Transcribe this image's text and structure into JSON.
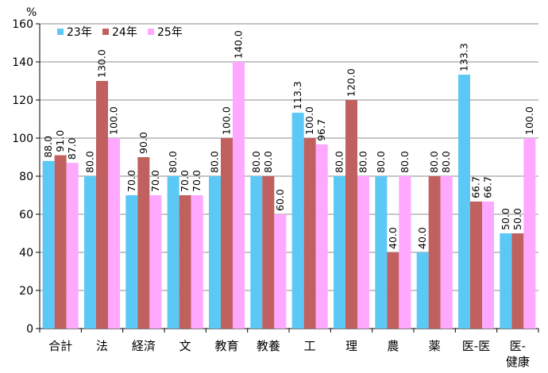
{
  "chart_data": {
    "type": "bar",
    "y_unit": "%",
    "ylim": [
      0,
      160
    ],
    "y_ticks": [
      0,
      20,
      40,
      60,
      80,
      100,
      120,
      140,
      160
    ],
    "grid": true,
    "legend_placement": "top-left",
    "categories": [
      "合計",
      "法",
      "経済",
      "文",
      "教育",
      "教養",
      "工",
      "理",
      "農",
      "薬",
      "医-医",
      "医-健康"
    ],
    "category_lines": [
      [
        "合計"
      ],
      [
        "法"
      ],
      [
        "経済"
      ],
      [
        "文"
      ],
      [
        "教育"
      ],
      [
        "教養"
      ],
      [
        "工"
      ],
      [
        "理"
      ],
      [
        "農"
      ],
      [
        "薬"
      ],
      [
        "医-医"
      ],
      [
        "医-",
        "健康"
      ]
    ],
    "series": [
      {
        "name": "23年",
        "color": "#5bc8f5",
        "values": [
          88.0,
          80.0,
          70.0,
          80.0,
          80.0,
          80.0,
          113.3,
          80.0,
          80.0,
          40.0,
          133.3,
          50.0
        ]
      },
      {
        "name": "24年",
        "color": "#c0605f",
        "values": [
          91.0,
          130.0,
          90.0,
          70.0,
          100.0,
          80.0,
          100.0,
          120.0,
          40.0,
          80.0,
          66.7,
          50.0
        ]
      },
      {
        "name": "25年",
        "color": "#ffa8ff",
        "values": [
          87.0,
          100.0,
          70.0,
          70.0,
          140.0,
          60.0,
          96.7,
          80.0,
          80.0,
          80.0,
          66.7,
          100.0
        ]
      }
    ]
  }
}
